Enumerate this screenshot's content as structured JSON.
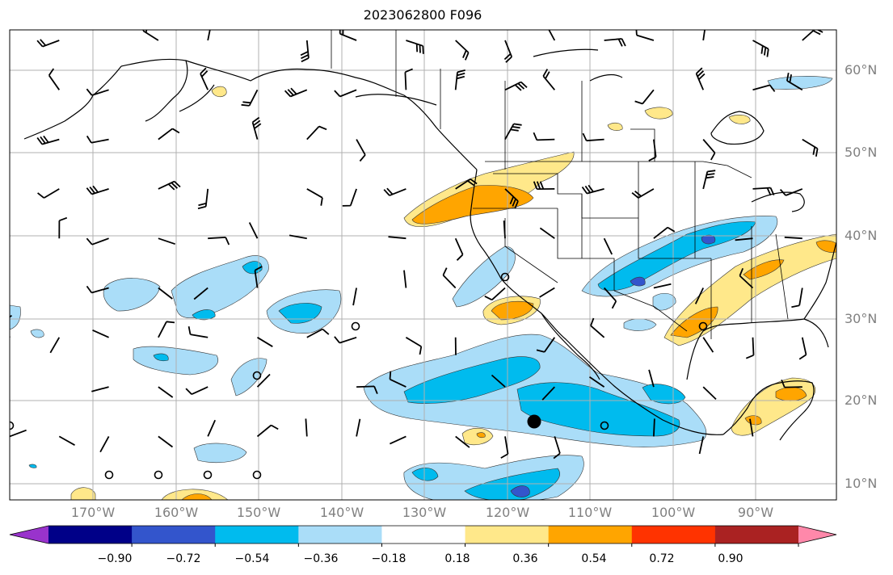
{
  "title": "2023062800 F096",
  "lat_labels": [
    "60°N",
    "50°N",
    "40°N",
    "30°N",
    "20°N",
    "10°N"
  ],
  "lon_labels": [
    "170°W",
    "160°W",
    "150°W",
    "140°W",
    "130°W",
    "120°W",
    "110°W",
    "100°W",
    "90°W"
  ],
  "colorbar": {
    "ticks": [
      "−0.90",
      "−0.72",
      "−0.54",
      "−0.36",
      "−0.18",
      "0.18",
      "0.36",
      "0.54",
      "0.72",
      "0.90"
    ],
    "colors": [
      "#9933cc",
      "#000088",
      "#3355cc",
      "#00bbee",
      "#aaddf8",
      "#ffffff",
      "#ffe88a",
      "#ffa500",
      "#ff3300",
      "#aa2222",
      "#ff88aa"
    ]
  },
  "colors": {
    "light_blue": "#aaddf8",
    "blue": "#00bbee",
    "dark_blue": "#3355cc",
    "purple": "#7744cc",
    "light_yellow": "#ffe88a",
    "orange": "#ffa500",
    "grid": "#b0b0b0",
    "coast": "#000000"
  }
}
